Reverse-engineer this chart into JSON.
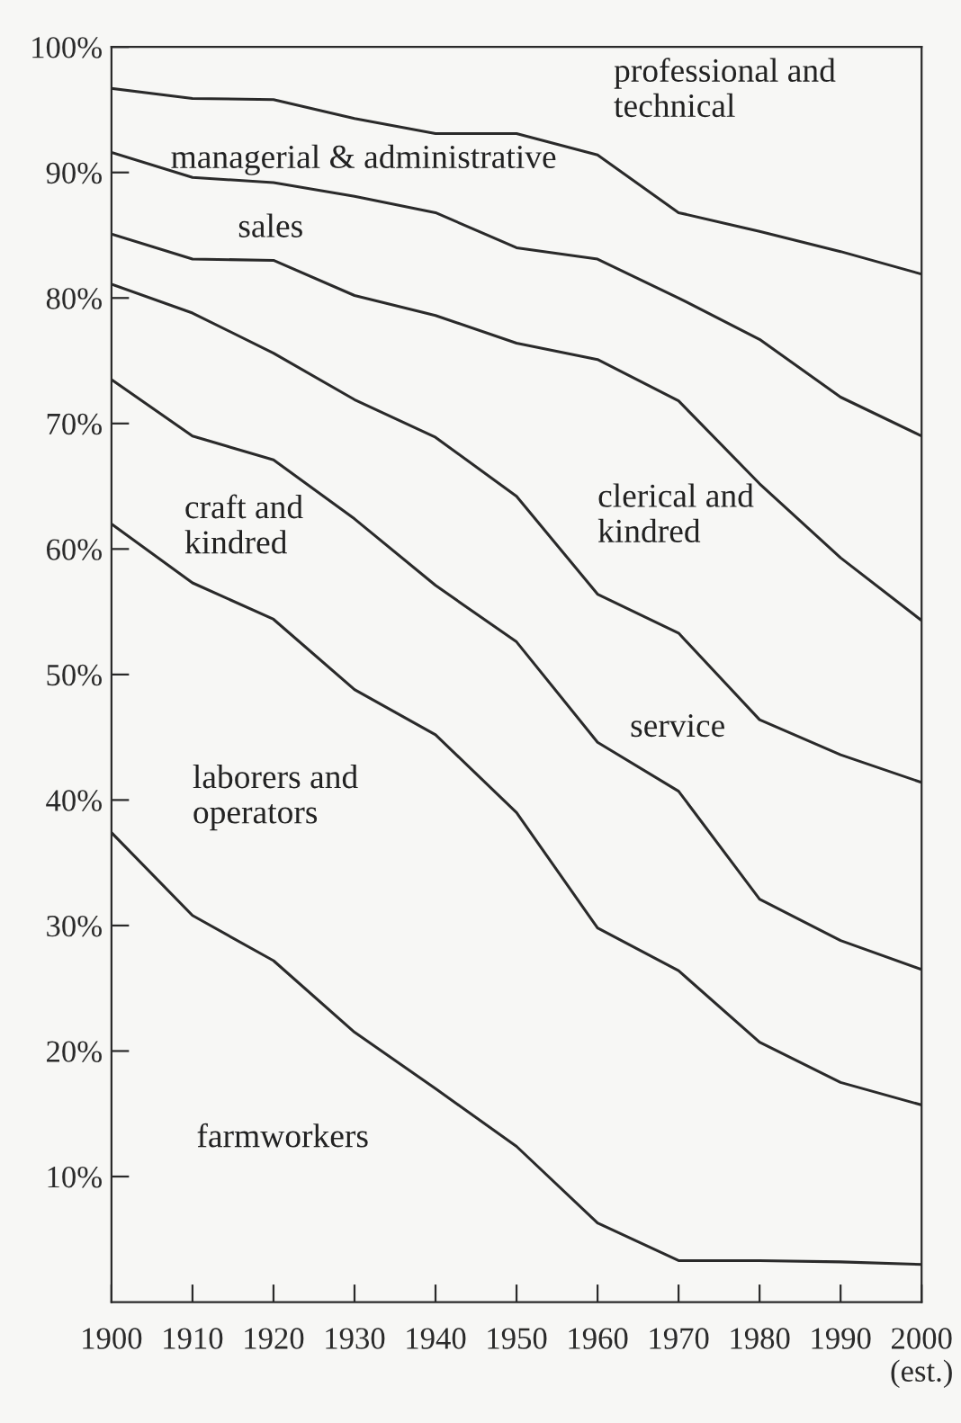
{
  "chart_data": {
    "type": "line",
    "x": [
      1900,
      1910,
      1920,
      1930,
      1940,
      1950,
      1960,
      1970,
      1980,
      1990,
      2000
    ],
    "series": [
      {
        "color": "#2a2a2a",
        "values": [
          96.7,
          95.9,
          95.8,
          94.3,
          93.1,
          93.1,
          91.4,
          86.8,
          85.3,
          83.7,
          81.9
        ]
      },
      {
        "color": "#2a2a2a",
        "values": [
          91.6,
          89.6,
          89.2,
          88.1,
          86.8,
          84.0,
          83.1,
          80.0,
          76.7,
          72.1,
          69.0
        ]
      },
      {
        "color": "#2a2a2a",
        "values": [
          85.1,
          83.1,
          83.0,
          80.2,
          78.6,
          76.4,
          75.1,
          71.8,
          65.2,
          59.3,
          54.3
        ]
      },
      {
        "color": "#2a2a2a",
        "values": [
          81.1,
          78.8,
          75.6,
          71.9,
          68.9,
          64.2,
          56.4,
          53.3,
          46.4,
          43.6,
          41.4
        ]
      },
      {
        "color": "#2a2a2a",
        "values": [
          73.5,
          69.0,
          67.1,
          62.4,
          57.1,
          52.6,
          44.6,
          40.7,
          32.1,
          28.8,
          26.5
        ]
      },
      {
        "color": "#2a2a2a",
        "values": [
          62.0,
          57.3,
          54.4,
          48.8,
          45.2,
          39.0,
          29.8,
          26.4,
          20.7,
          17.5,
          15.7
        ]
      },
      {
        "color": "#2a2a2a",
        "values": [
          37.4,
          30.8,
          27.2,
          21.5,
          17.0,
          12.4,
          6.3,
          3.3,
          3.3,
          3.2,
          3.0
        ]
      }
    ],
    "annotations": [
      "professional and\ntechnical",
      "managerial & administrative",
      "sales",
      "clerical and\nkindred",
      "service",
      "craft and\nkindred",
      "laborers and\noperators",
      "farmworkers"
    ],
    "xlim": [
      1900,
      2000
    ],
    "xticks": [
      1900,
      1910,
      1920,
      1930,
      1940,
      1950,
      1960,
      1970,
      1980,
      1990,
      {
        "value": 2000,
        "label": "2000\n(est.)"
      }
    ],
    "ylim": [
      0,
      100
    ],
    "yticks": [
      {
        "value": 10,
        "label": "10%"
      },
      {
        "value": 20,
        "label": "20%"
      },
      {
        "value": 30,
        "label": "30%"
      },
      {
        "value": 40,
        "label": "40%"
      },
      {
        "value": 50,
        "label": "50%"
      },
      {
        "value": 60,
        "label": "60%"
      },
      {
        "value": 70,
        "label": "70%"
      },
      {
        "value": 80,
        "label": "80%"
      },
      {
        "value": 90,
        "label": "90%"
      },
      {
        "value": 100,
        "label": "100%"
      }
    ],
    "grid": false,
    "legend": false,
    "marker": "none",
    "line_style": "solid"
  }
}
